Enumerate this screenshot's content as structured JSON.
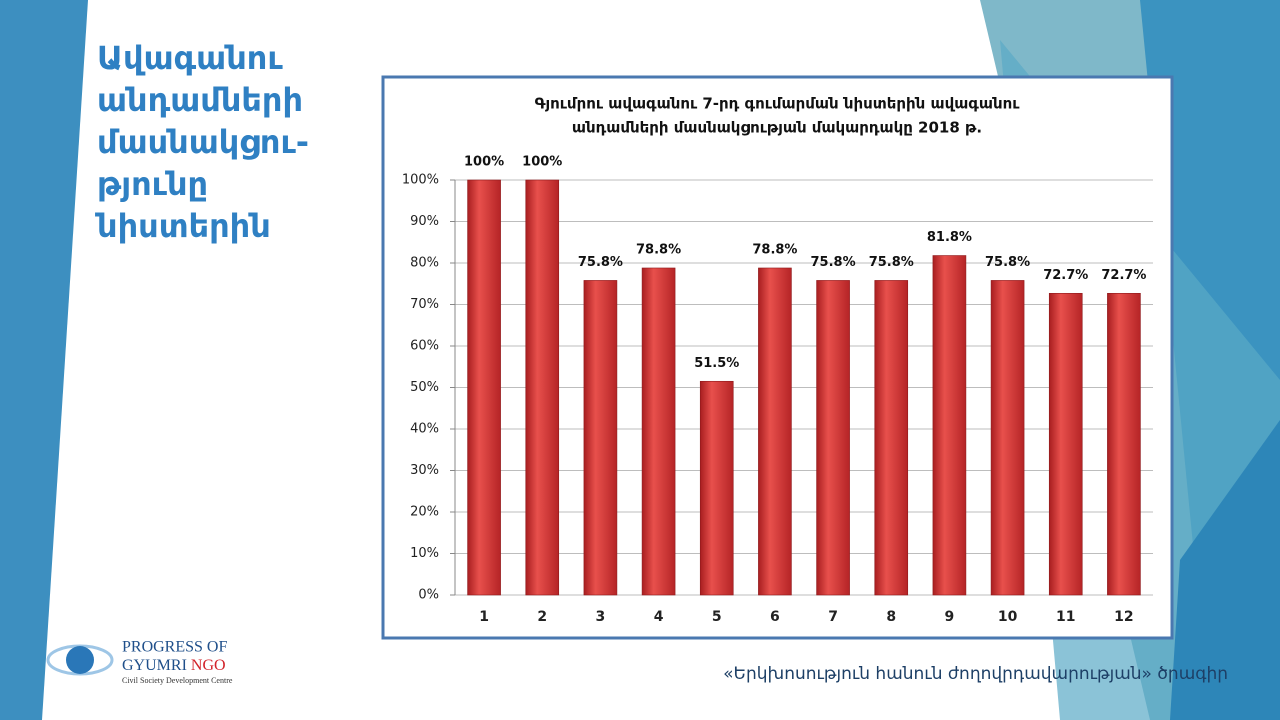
{
  "slide_title": [
    "Ավագանու",
    "անդամների",
    "մասնակցու-",
    "թյունը",
    "նիստերին"
  ],
  "chart_data": {
    "type": "bar",
    "title": [
      "Գյումրու ավագանու 7-րդ գումարման նիստերին ավագանու",
      "անդամների մասնակցության մակարդակը 2018 թ."
    ],
    "categories": [
      "1",
      "2",
      "3",
      "4",
      "5",
      "6",
      "7",
      "8",
      "9",
      "10",
      "11",
      "12"
    ],
    "values": [
      100,
      100,
      75.8,
      78.8,
      51.5,
      78.8,
      75.8,
      75.8,
      81.8,
      75.8,
      72.7,
      72.7
    ],
    "value_labels": [
      "100%",
      "100%",
      "75.8%",
      "78.8%",
      "51.5%",
      "78.8%",
      "75.8%",
      "75.8%",
      "81.8%",
      "75.8%",
      "72.7%",
      "72.7%"
    ],
    "color": "#d43a3a",
    "ylim": [
      0,
      100
    ],
    "yticks": [
      {
        "value": 0,
        "label": "0%"
      },
      {
        "value": 10,
        "label": "10%"
      },
      {
        "value": 20,
        "label": "20%"
      },
      {
        "value": 30,
        "label": "30%"
      },
      {
        "value": 40,
        "label": "40%"
      },
      {
        "value": 50,
        "label": "50%"
      },
      {
        "value": 60,
        "label": "60%"
      },
      {
        "value": 70,
        "label": "70%"
      },
      {
        "value": 80,
        "label": "80%"
      },
      {
        "value": 90,
        "label": "90%"
      },
      {
        "value": 100,
        "label": "100%"
      }
    ],
    "grid": true
  },
  "logo": {
    "line1": "PROGRESS OF",
    "line2": "GYUMRI",
    "line2_accent": "NGO",
    "subtitle": "Civil Society Development Centre"
  },
  "footer": "«Երկխոսություն հանուն ժողովրդավարության» ծրագիր"
}
